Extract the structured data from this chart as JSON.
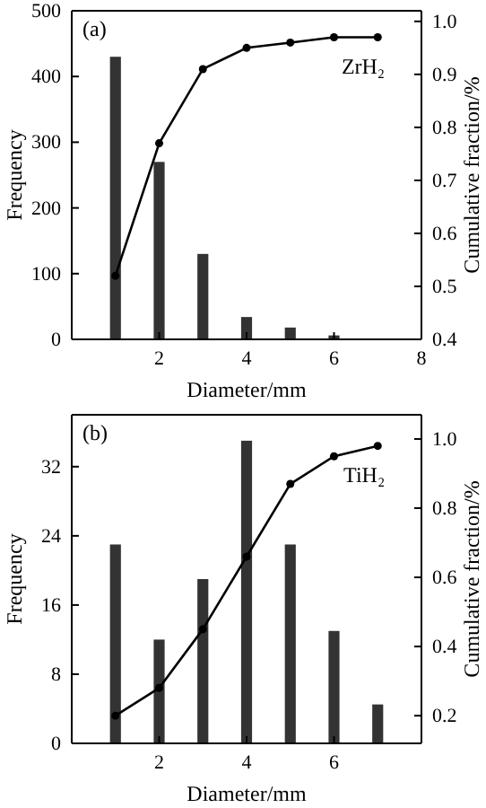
{
  "chart_data": [
    {
      "type": "bar",
      "xlabel": "Diameter/mm",
      "ylabel": "Frequency",
      "y2label": "Cumulative fraction/%",
      "annotations": [
        "(a)"
      ],
      "xlim": [
        0,
        8
      ],
      "xticks": [
        2,
        4,
        6,
        8
      ],
      "ylim": [
        0,
        500
      ],
      "yticks": [
        0,
        100,
        200,
        300,
        400,
        500
      ],
      "y2lim": [
        0.4,
        1.02
      ],
      "y2ticks": [
        0.4,
        0.5,
        0.6,
        0.7,
        0.8,
        0.9,
        {
          "value": 1,
          "label": "1.0"
        }
      ],
      "marker": "circle",
      "grid": false,
      "series": [
        {
          "color": "#333333",
          "x": [
            1,
            2,
            3,
            4,
            5,
            6
          ],
          "values": [
            430,
            270,
            130,
            34,
            18,
            6
          ]
        },
        {
          "type": "line",
          "axis": "y2",
          "name": "ZrH₂",
          "color": "#000000",
          "x": [
            1,
            2,
            3,
            4,
            5,
            6,
            7
          ],
          "values": [
            0.52,
            0.77,
            0.91,
            0.95,
            0.96,
            0.97,
            0.97
          ]
        }
      ]
    },
    {
      "type": "bar",
      "xlabel": "Diameter/mm",
      "ylabel": "Frequency",
      "y2label": "Cumulative fraction/%",
      "annotations": [
        "(b)"
      ],
      "xlim": [
        0,
        8
      ],
      "xticks": [
        2,
        4,
        6
      ],
      "ylim": [
        0,
        38
      ],
      "yticks": [
        0,
        8,
        16,
        24,
        32
      ],
      "y2lim": [
        0.12,
        1.07
      ],
      "y2ticks": [
        0.2,
        0.4,
        0.6,
        0.8,
        {
          "value": 1,
          "label": "1.0"
        }
      ],
      "marker": "circle",
      "grid": false,
      "series": [
        {
          "color": "#333333",
          "x": [
            1,
            2,
            3,
            4,
            5,
            6,
            7
          ],
          "values": [
            23,
            12,
            19,
            35,
            23,
            13,
            4.5
          ]
        },
        {
          "type": "line",
          "axis": "y2",
          "name": "TiH₂",
          "color": "#000000",
          "x": [
            1,
            2,
            3,
            4,
            5,
            6,
            7
          ],
          "values": [
            0.2,
            0.28,
            0.45,
            0.66,
            0.87,
            0.95,
            0.98
          ]
        }
      ]
    }
  ]
}
